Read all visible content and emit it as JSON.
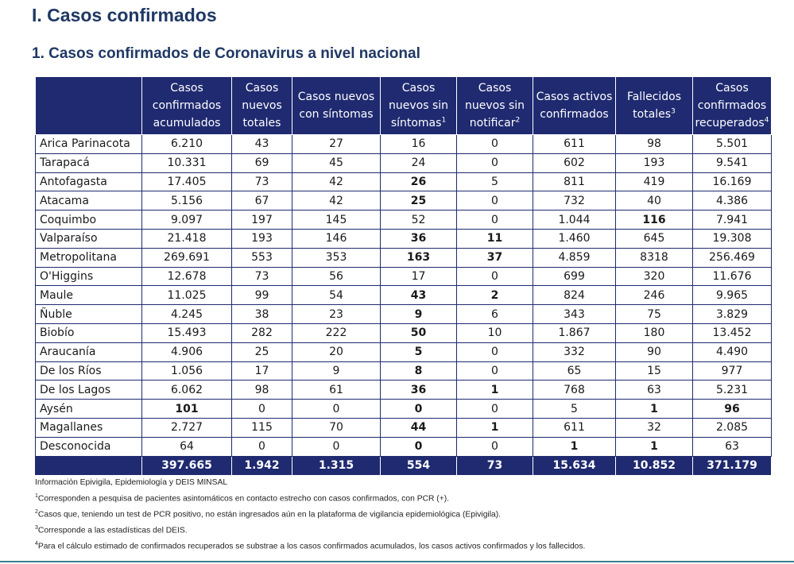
{
  "page_title": "I. Casos confirmados",
  "section_title": "1. Casos confirmados de Coronavirus a nivel nacional",
  "table": {
    "columns": [
      {
        "label": "Casos confirmados acumulados",
        "sup": ""
      },
      {
        "label": "Casos nuevos totales",
        "sup": ""
      },
      {
        "label": "Casos nuevos con síntomas",
        "sup": ""
      },
      {
        "label": "Casos nuevos sin síntomas",
        "sup": "1"
      },
      {
        "label": "Casos nuevos sin notificar",
        "sup": "2"
      },
      {
        "label": "Casos activos confirmados",
        "sup": ""
      },
      {
        "label": "Fallecidos totales",
        "sup": "3"
      },
      {
        "label": "Casos confirmados recuperados",
        "sup": "4"
      }
    ],
    "rows": [
      {
        "region": "Arica Parinacota",
        "values": [
          "6.210",
          "43",
          "27",
          "16",
          "0",
          "611",
          "98",
          "5.501"
        ],
        "bold": []
      },
      {
        "region": "Tarapacá",
        "values": [
          "10.331",
          "69",
          "45",
          "24",
          "0",
          "602",
          "193",
          "9.541"
        ],
        "bold": []
      },
      {
        "region": "Antofagasta",
        "values": [
          "17.405",
          "73",
          "42",
          "26",
          "5",
          "811",
          "419",
          "16.169"
        ],
        "bold": [
          3
        ]
      },
      {
        "region": "Atacama",
        "values": [
          "5.156",
          "67",
          "42",
          "25",
          "0",
          "732",
          "40",
          "4.386"
        ],
        "bold": [
          3
        ]
      },
      {
        "region": "Coquimbo",
        "values": [
          "9.097",
          "197",
          "145",
          "52",
          "0",
          "1.044",
          "116",
          "7.941"
        ],
        "bold": [
          6
        ]
      },
      {
        "region": "Valparaíso",
        "values": [
          "21.418",
          "193",
          "146",
          "36",
          "11",
          "1.460",
          "645",
          "19.308"
        ],
        "bold": [
          3,
          4
        ]
      },
      {
        "region": "Metropolitana",
        "values": [
          "269.691",
          "553",
          "353",
          "163",
          "37",
          "4.859",
          "8318",
          "256.469"
        ],
        "bold": [
          3,
          4
        ]
      },
      {
        "region": "O'Higgins",
        "values": [
          "12.678",
          "73",
          "56",
          "17",
          "0",
          "699",
          "320",
          "11.676"
        ],
        "bold": []
      },
      {
        "region": "Maule",
        "values": [
          "11.025",
          "99",
          "54",
          "43",
          "2",
          "824",
          "246",
          "9.965"
        ],
        "bold": [
          3,
          4
        ]
      },
      {
        "region": "Ñuble",
        "values": [
          "4.245",
          "38",
          "23",
          "9",
          "6",
          "343",
          "75",
          "3.829"
        ],
        "bold": [
          3
        ]
      },
      {
        "region": "Biobío",
        "values": [
          "15.493",
          "282",
          "222",
          "50",
          "10",
          "1.867",
          "180",
          "13.452"
        ],
        "bold": [
          3
        ]
      },
      {
        "region": "Araucanía",
        "values": [
          "4.906",
          "25",
          "20",
          "5",
          "0",
          "332",
          "90",
          "4.490"
        ],
        "bold": [
          3
        ]
      },
      {
        "region": "De los Ríos",
        "values": [
          "1.056",
          "17",
          "9",
          "8",
          "0",
          "65",
          "15",
          "977"
        ],
        "bold": [
          3
        ]
      },
      {
        "region": "De los Lagos",
        "values": [
          "6.062",
          "98",
          "61",
          "36",
          "1",
          "768",
          "63",
          "5.231"
        ],
        "bold": [
          3,
          4
        ]
      },
      {
        "region": "Aysén",
        "values": [
          "101",
          "0",
          "0",
          "0",
          "0",
          "5",
          "1",
          "96"
        ],
        "bold": [
          0,
          3,
          6,
          7
        ]
      },
      {
        "region": "Magallanes",
        "values": [
          "2.727",
          "115",
          "70",
          "44",
          "1",
          "611",
          "32",
          "2.085"
        ],
        "bold": [
          3,
          4
        ]
      },
      {
        "region": "Desconocida",
        "values": [
          "64",
          "0",
          "0",
          "0",
          "0",
          "1",
          "1",
          "63"
        ],
        "bold": [
          3,
          5,
          6
        ]
      }
    ],
    "totals": [
      "397.665",
      "1.942",
      "1.315",
      "554",
      "73",
      "15.634",
      "10.852",
      "371.179"
    ]
  },
  "notes": [
    {
      "sup": "",
      "text": "Información Epivigila, Epidemiología y DEIS MINSAL"
    },
    {
      "sup": "1",
      "text": "Corresponden a pesquisa de pacientes asintomáticos en contacto estrecho con casos confirmados, con PCR (+)."
    },
    {
      "sup": "2",
      "text": "Casos que, teniendo un test de PCR positivo, no están ingresados aún en la plataforma de vigilancia epidemiológica (Epivigila)."
    },
    {
      "sup": "3",
      "text": "Corresponde a las estadísticas del DEIS."
    },
    {
      "sup": "4",
      "text": "Para el cálculo estimado de confirmados recuperados se substrae a los casos confirmados acumulados, los casos activos confirmados y los fallecidos."
    }
  ]
}
